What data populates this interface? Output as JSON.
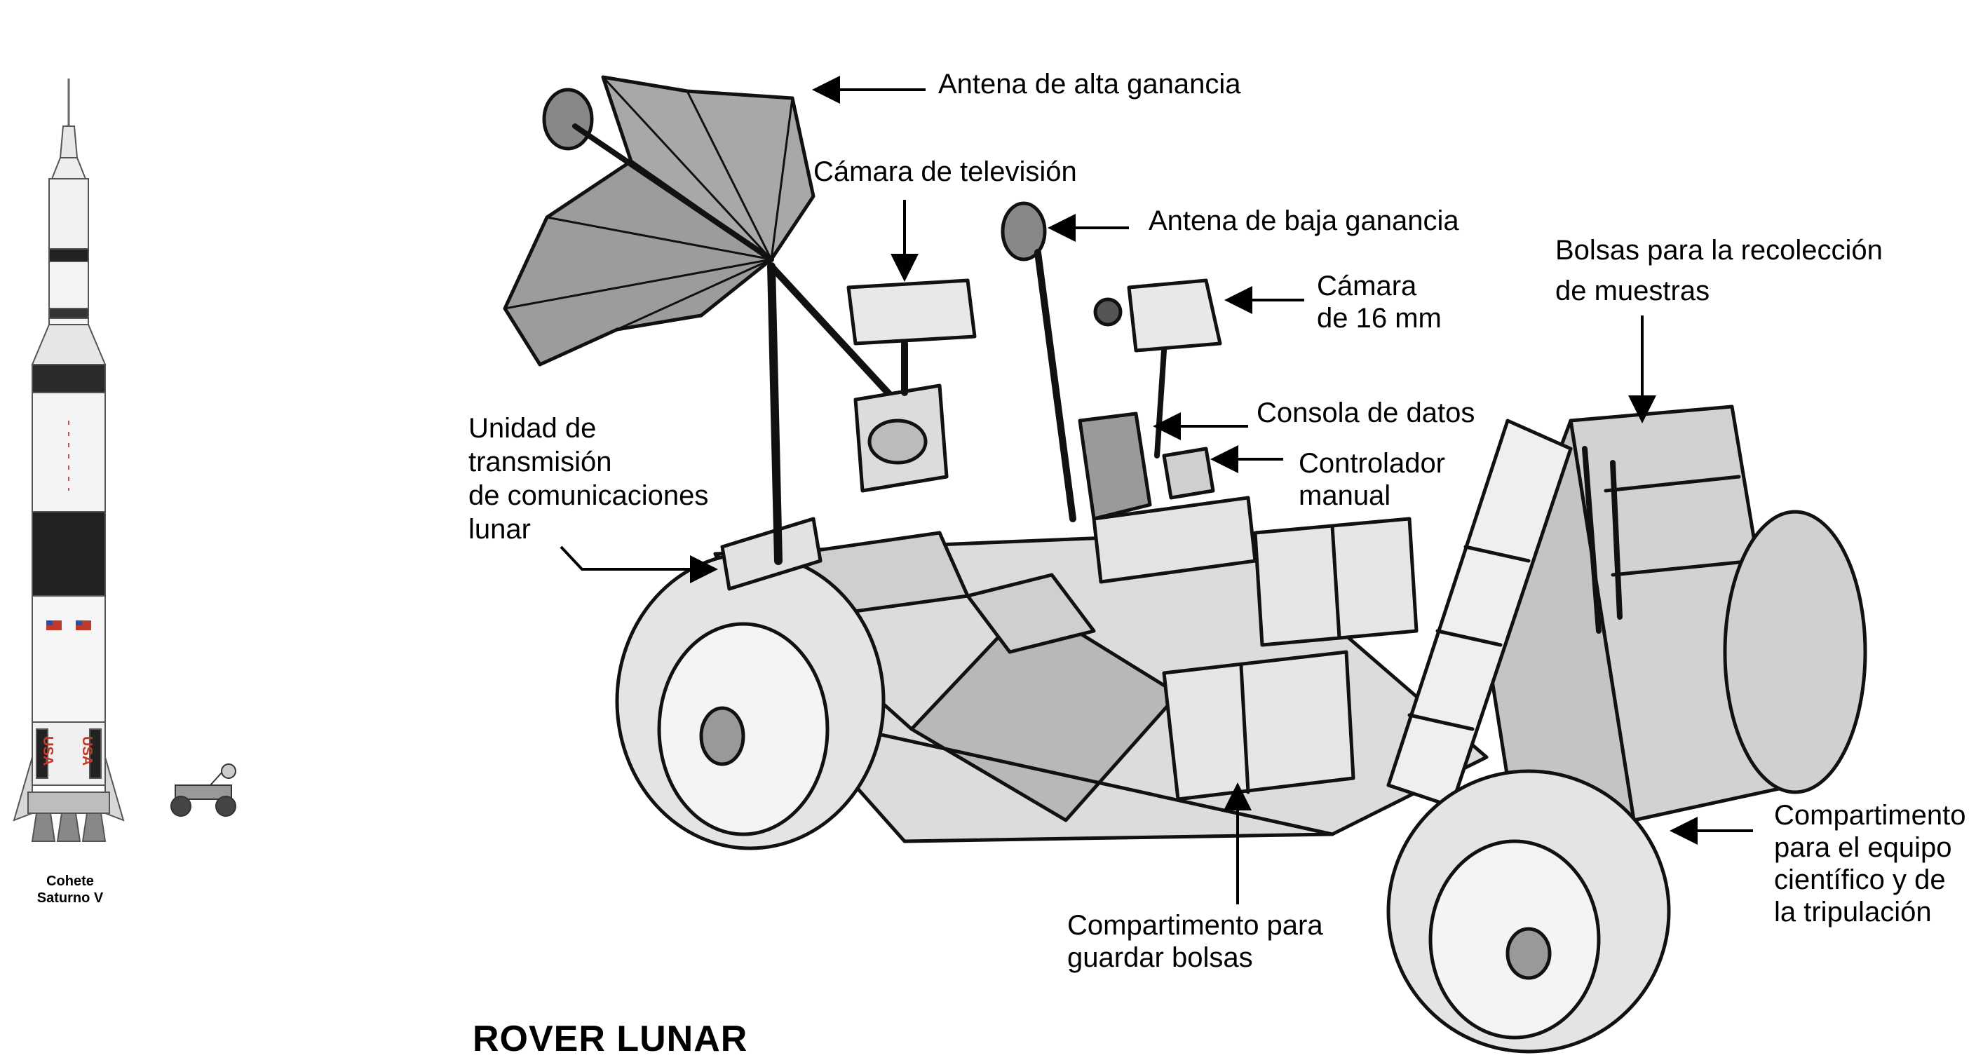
{
  "diagram": {
    "title": "ROVER LUNAR",
    "rocket_caption": "Cohete\nSaturno V",
    "rocket_markings": [
      "USA",
      "USA"
    ],
    "labels": {
      "high_gain_antenna": "Antena de alta ganancia",
      "tv_camera": "Cámara de televisión",
      "low_gain_antenna": "Antena de baja ganancia",
      "sample_bags": "Bolsas para la recolección\nde muestras",
      "camera_16mm": "Cámara\nde 16 mm",
      "data_console": "Consola de datos",
      "hand_controller": "Controlador\nmanual",
      "comm_relay_unit": "Unidad de\ntransmisión\nde comunicaciones\nlunar",
      "science_compartment": "Compartimento\npara el equipo\ncientífico y de\nla tripulación",
      "bag_compartment": "Compartimento para\nguardar bolsas"
    }
  }
}
